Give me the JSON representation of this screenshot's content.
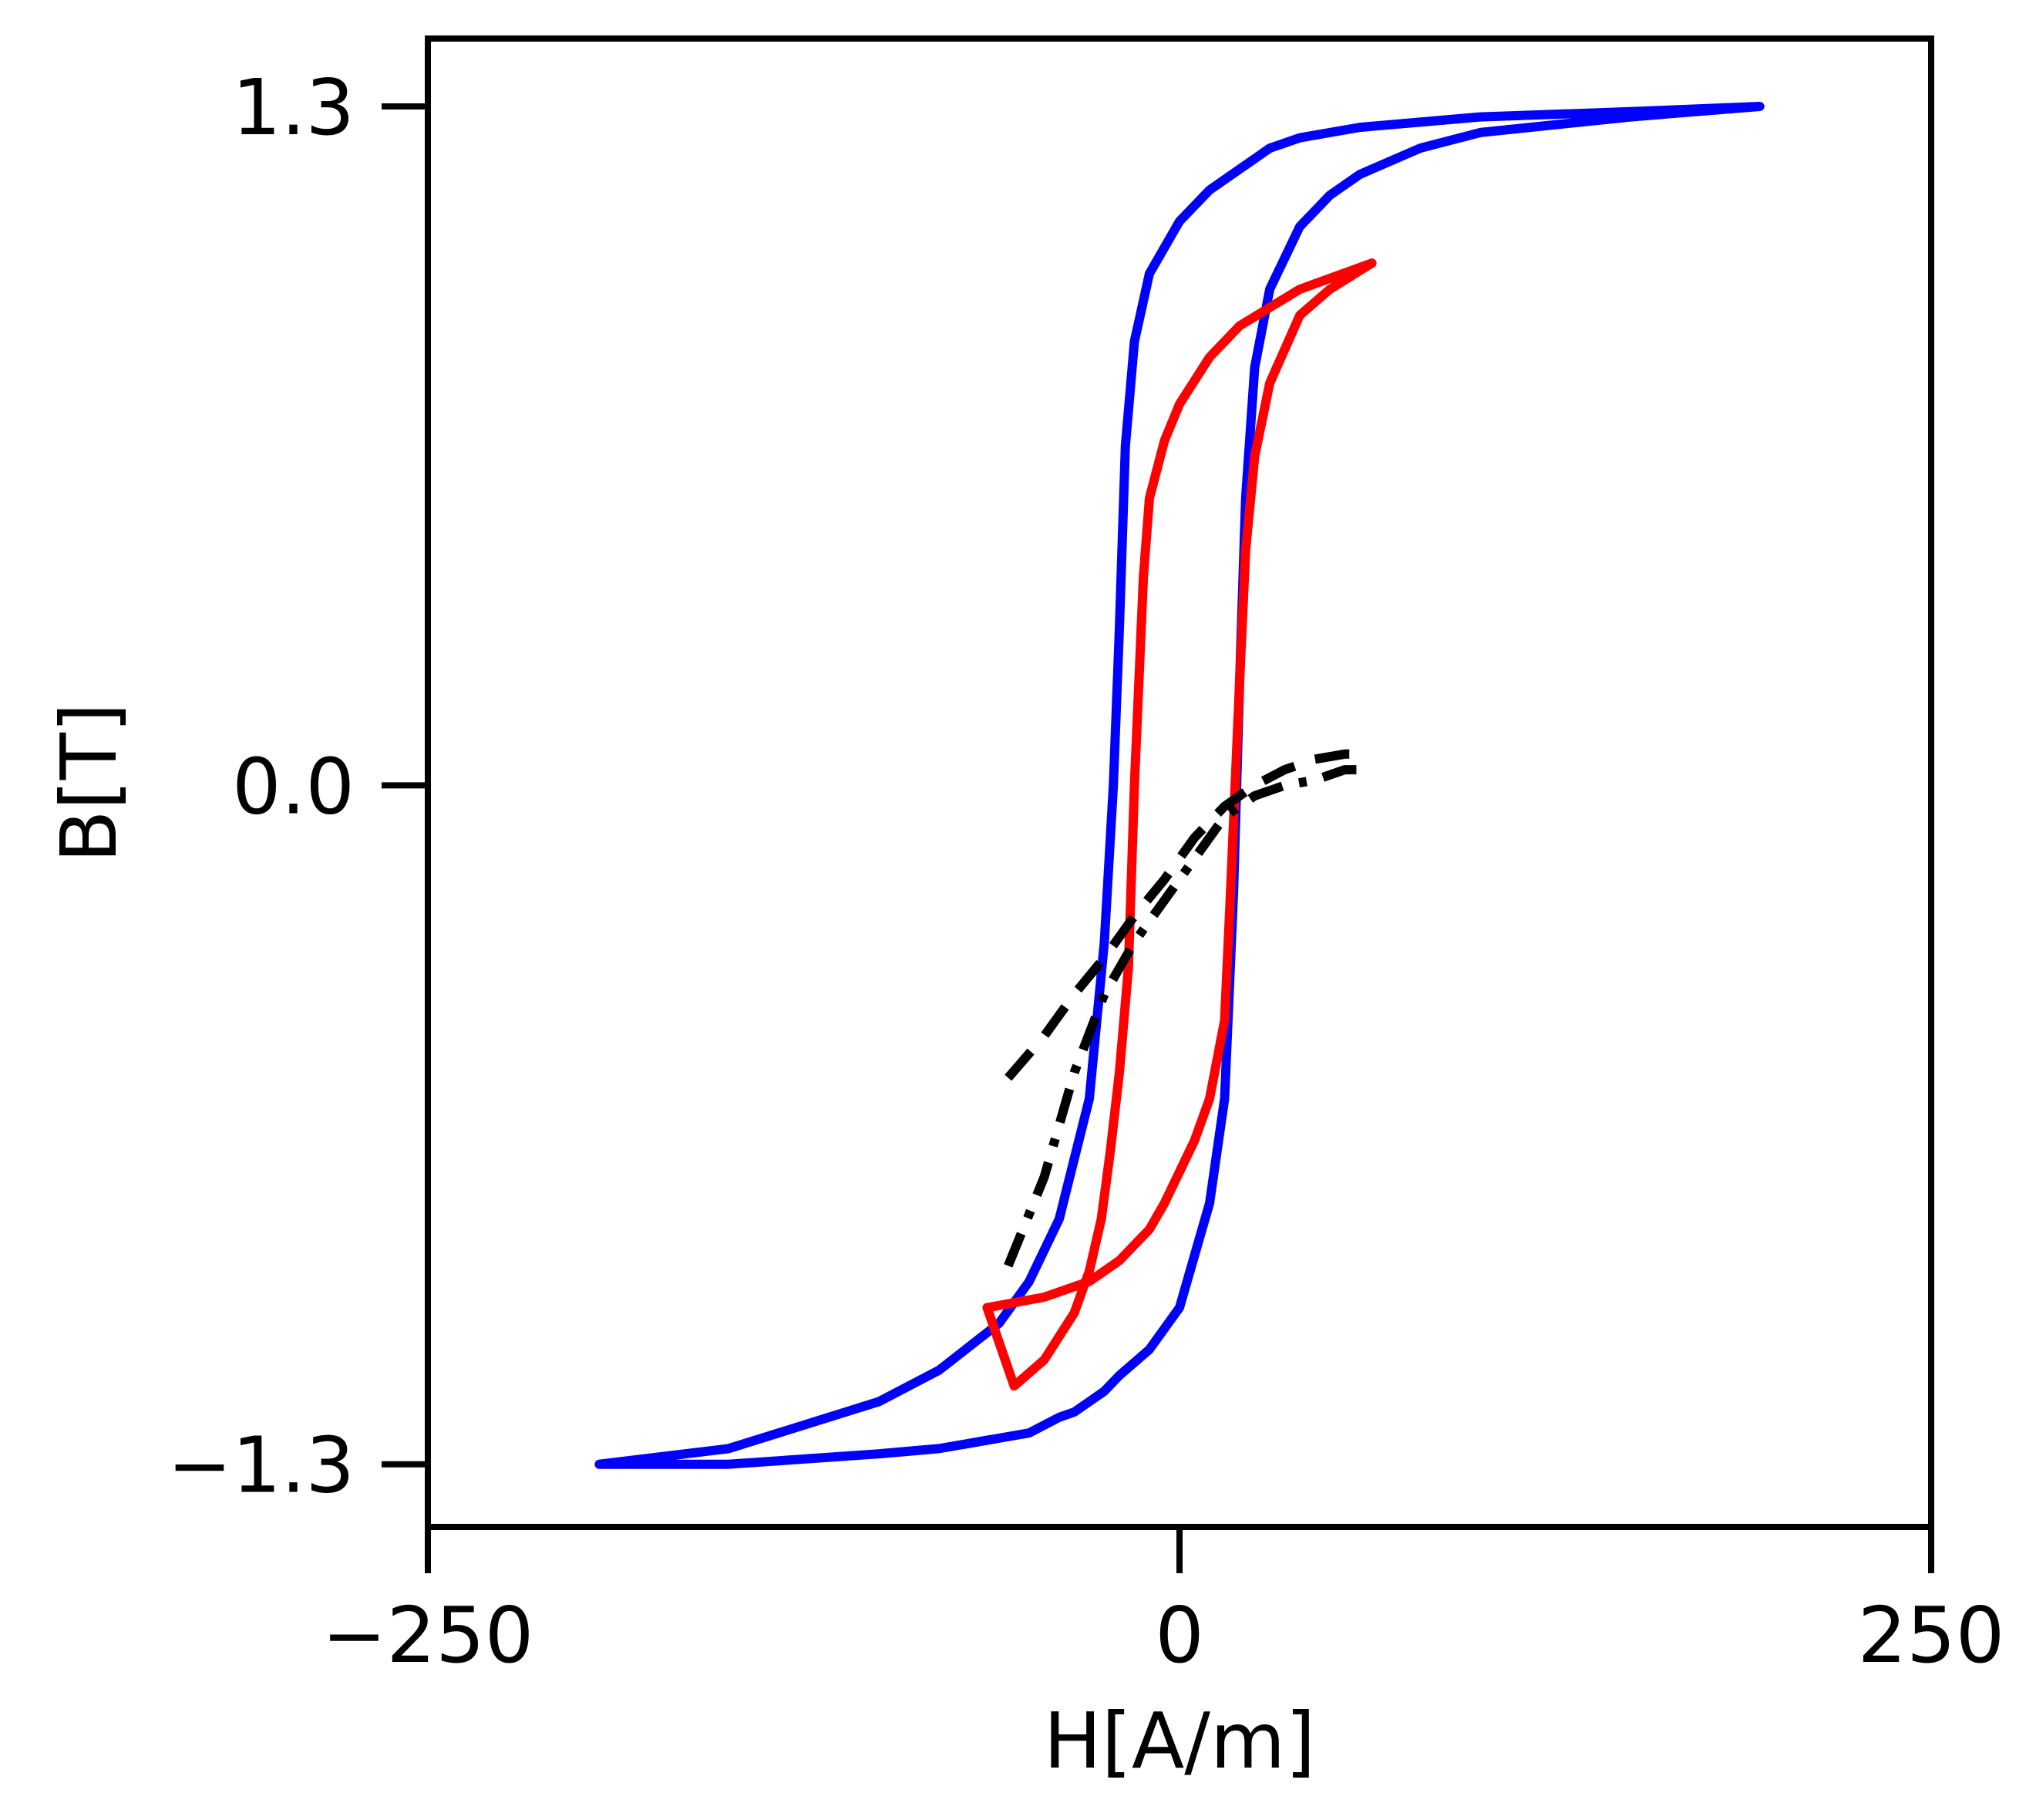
{
  "chart_data": {
    "type": "line",
    "title": "",
    "xlabel": "H[A/m]",
    "ylabel": "B[T]",
    "xlim": [
      -250,
      250
    ],
    "ylim": [
      -1.42,
      1.43
    ],
    "xticks": [
      -250,
      0,
      250
    ],
    "xtick_labels": [
      "−250",
      "0",
      "250"
    ],
    "yticks": [
      -1.3,
      0.0,
      1.3
    ],
    "ytick_labels": [
      "−1.3",
      "0.0",
      "1.3"
    ],
    "grid": false,
    "legend": "none",
    "series": [
      {
        "color": "#0000ff",
        "style": "solid",
        "x": [
          193,
          150,
          100,
          80,
          60,
          50,
          40,
          30,
          25,
          22,
          20,
          18,
          15,
          10,
          0,
          -10,
          -20,
          -25,
          -30,
          -35,
          -40,
          -50,
          -60,
          -80,
          -100,
          -150,
          -193,
          -150,
          -100,
          -80,
          -60,
          -50,
          -40,
          -30,
          -25,
          -22,
          -20,
          -18,
          -15,
          -10,
          0,
          10,
          20,
          25,
          30,
          35,
          40,
          50,
          60,
          80,
          100,
          150,
          193
        ],
        "y": [
          1.3,
          1.28,
          1.25,
          1.22,
          1.17,
          1.13,
          1.07,
          0.95,
          0.8,
          0.55,
          0.2,
          -0.2,
          -0.6,
          -0.8,
          -1.0,
          -1.08,
          -1.13,
          -1.16,
          -1.18,
          -1.2,
          -1.21,
          -1.24,
          -1.25,
          -1.27,
          -1.28,
          -1.3,
          -1.3,
          -1.27,
          -1.18,
          -1.12,
          -1.03,
          -0.95,
          -0.83,
          -0.6,
          -0.3,
          0.0,
          0.3,
          0.65,
          0.85,
          0.98,
          1.08,
          1.14,
          1.18,
          1.2,
          1.22,
          1.23,
          1.24,
          1.25,
          1.26,
          1.27,
          1.28,
          1.29,
          1.3
        ]
      },
      {
        "color": "#ff0000",
        "style": "solid",
        "x": [
          64,
          40,
          20,
          10,
          0,
          -5,
          -10,
          -12,
          -15,
          -17,
          -20,
          -23,
          -26,
          -30,
          -35,
          -45,
          -55,
          -64,
          -45,
          -30,
          -20,
          -10,
          -5,
          0,
          5,
          10,
          15,
          17,
          20,
          22,
          25,
          30,
          40,
          50,
          64
        ],
        "y": [
          1.0,
          0.95,
          0.88,
          0.82,
          0.73,
          0.66,
          0.55,
          0.4,
          0.0,
          -0.35,
          -0.55,
          -0.7,
          -0.83,
          -0.93,
          -1.01,
          -1.1,
          -1.15,
          -1.0,
          -0.98,
          -0.95,
          -0.91,
          -0.85,
          -0.8,
          -0.74,
          -0.68,
          -0.6,
          -0.45,
          -0.2,
          0.2,
          0.45,
          0.63,
          0.77,
          0.9,
          0.95,
          1.0
        ]
      },
      {
        "color": "#000000",
        "style": "dashed",
        "x": [
          -57,
          -45,
          -35,
          -25,
          -15,
          -5,
          5,
          15,
          25,
          35,
          45,
          55,
          60
        ],
        "y": [
          -0.56,
          -0.48,
          -0.4,
          -0.33,
          -0.25,
          -0.18,
          -0.1,
          -0.04,
          0.0,
          0.03,
          0.05,
          0.06,
          0.06
        ]
      },
      {
        "color": "#000000",
        "style": "dashdot",
        "x": [
          -57,
          -45,
          -35,
          -25,
          -15,
          -5,
          5,
          15,
          25,
          35,
          45,
          55,
          60
        ],
        "y": [
          -0.92,
          -0.75,
          -0.55,
          -0.4,
          -0.3,
          -0.22,
          -0.14,
          -0.06,
          -0.02,
          0.0,
          0.01,
          0.03,
          0.03
        ]
      }
    ]
  }
}
